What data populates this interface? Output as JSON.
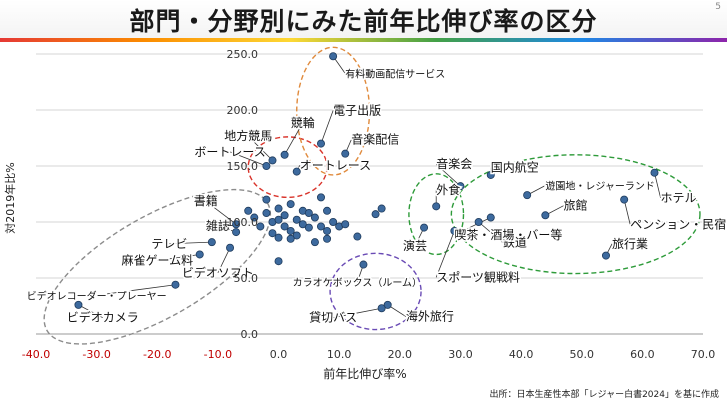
{
  "title": "部門・分野別にみた前年比伸び率の区分",
  "page_number": "5",
  "source_note": "出所：日本生産性本部「レジャー白書2024」を基に作成",
  "colors": {
    "point_fill": "#3d6a9e",
    "point_stroke": "#1f3b5c",
    "negative_tick": "#c00000",
    "red_group": "#d9342b",
    "orange_group": "#e08a3c",
    "green_group": "#2e9b3a",
    "purple_group": "#6a4bb5",
    "gray_group": "#8c8c8c"
  },
  "chart_data": {
    "type": "scatter",
    "xlabel": "前年比伸び率%",
    "ylabel": "対2019年比%",
    "xlim": [
      -40,
      70
    ],
    "ylim": [
      0,
      250
    ],
    "xticks": [
      "-40.0",
      "-30.0",
      "-20.0",
      "-10.0",
      "0.0",
      "10.0",
      "20.0",
      "30.0",
      "40.0",
      "50.0",
      "60.0",
      "70.0"
    ],
    "yticks": [
      "0.0",
      "50.0",
      "100.0",
      "150.0",
      "200.0",
      "250.0"
    ],
    "grid": "horizontal",
    "points": [
      {
        "x": 9.0,
        "y": 248.0,
        "label": "有料動画配信サービス",
        "lx": 11.0,
        "ly": 229.0,
        "anchor": "start"
      },
      {
        "x": 7.0,
        "y": 170.0,
        "label": "電子出版",
        "lx": 9.0,
        "ly": 196.0,
        "anchor": "start"
      },
      {
        "x": 11.0,
        "y": 161.0,
        "label": "音楽配信",
        "lx": 12.0,
        "ly": 170.0,
        "anchor": "start"
      },
      {
        "x": 1.0,
        "y": 160.0,
        "label": "競輪",
        "lx": 4.0,
        "ly": 185.0,
        "anchor": "middle"
      },
      {
        "x": -1.0,
        "y": 155.0,
        "label": "地方競馬",
        "lx": -5.0,
        "ly": 173.0,
        "anchor": "middle"
      },
      {
        "x": -2.0,
        "y": 150.0,
        "label": "ボートレース",
        "lx": -8.0,
        "ly": 159.0,
        "anchor": "middle"
      },
      {
        "x": 3.0,
        "y": 145.0,
        "label": "オートレース",
        "lx": 3.5,
        "ly": 147.0,
        "anchor": "start"
      },
      {
        "x": 30.0,
        "y": 132.0,
        "label": "音楽会",
        "lx": 26.0,
        "ly": 148.0,
        "anchor": "start"
      },
      {
        "x": 35.0,
        "y": 142.0,
        "label": "国内航空",
        "lx": 35.0,
        "ly": 145.0,
        "anchor": "start"
      },
      {
        "x": 62.0,
        "y": 144.0,
        "label": "ホテル",
        "lx": 63.0,
        "ly": 118.0,
        "anchor": "start"
      },
      {
        "x": 41.0,
        "y": 124.0,
        "label": "遊園地・レジャーランド",
        "lx": 44.0,
        "ly": 129.0,
        "anchor": "start"
      },
      {
        "x": 44.0,
        "y": 106.0,
        "label": "旅館",
        "lx": 47.0,
        "ly": 111.0,
        "anchor": "start"
      },
      {
        "x": 57.0,
        "y": 120.0,
        "label": "ペンション・民宿",
        "lx": 58.0,
        "ly": 94.0,
        "anchor": "start"
      },
      {
        "x": 33.0,
        "y": 100.0,
        "label": "鉄道",
        "lx": 37.0,
        "ly": 78.0,
        "anchor": "start"
      },
      {
        "x": 35.0,
        "y": 104.0,
        "label": "喫茶・酒場・バー等",
        "lx": 29.0,
        "ly": 85.0,
        "anchor": "start"
      },
      {
        "x": 54.0,
        "y": 70.0,
        "label": "旅行業",
        "lx": 55.0,
        "ly": 77.0,
        "anchor": "start"
      },
      {
        "x": 26.0,
        "y": 114.0,
        "label": "外食",
        "lx": 26.0,
        "ly": 125.0,
        "anchor": "start"
      },
      {
        "x": 24.0,
        "y": 95.0,
        "label": "演芸",
        "lx": 22.5,
        "ly": 75.0,
        "anchor": "middle"
      },
      {
        "x": 29.0,
        "y": 92.0,
        "label": "スポーツ観戦料",
        "lx": 26.0,
        "ly": 47.0,
        "anchor": "start"
      },
      {
        "x": 14.0,
        "y": 62.0,
        "label": "カラオケボックス（ルーム）",
        "lx": 13.0,
        "ly": 43.0,
        "anchor": "middle"
      },
      {
        "x": 18.0,
        "y": 26.0,
        "label": "海外旅行",
        "lx": 21.0,
        "ly": 12.0,
        "anchor": "start"
      },
      {
        "x": 17.0,
        "y": 23.0,
        "label": "貸切バス",
        "lx": 9.0,
        "ly": 11.0,
        "anchor": "middle"
      },
      {
        "x": -7.0,
        "y": 98.0,
        "label": "書籍",
        "lx": -12.0,
        "ly": 115.0,
        "anchor": "middle"
      },
      {
        "x": -7.0,
        "y": 91.0,
        "label": "雑誌",
        "lx": -10.0,
        "ly": 93.0,
        "anchor": "middle"
      },
      {
        "x": -11.0,
        "y": 82.0,
        "label": "テレビ",
        "lx": -18.0,
        "ly": 77.0,
        "anchor": "middle"
      },
      {
        "x": -13.0,
        "y": 71.0,
        "label": "麻雀ゲーム料",
        "lx": -20.0,
        "ly": 62.0,
        "anchor": "middle"
      },
      {
        "x": -8.0,
        "y": 77.0,
        "label": "ビデオソフト",
        "lx": -10.0,
        "ly": 51.0,
        "anchor": "middle"
      },
      {
        "x": -17.0,
        "y": 44.0,
        "label": "ビデオレコーダー・プレーヤー",
        "lx": -30.0,
        "ly": 31.0,
        "anchor": "middle"
      },
      {
        "x": -33.0,
        "y": 26.0,
        "label": "ビデオカメラ",
        "lx": -29.0,
        "ly": 11.0,
        "anchor": "middle"
      },
      {
        "x": -5.0,
        "y": 110.0
      },
      {
        "x": -4.0,
        "y": 104.0
      },
      {
        "x": -3.0,
        "y": 96.0
      },
      {
        "x": -2.0,
        "y": 108.0
      },
      {
        "x": -1.0,
        "y": 100.0
      },
      {
        "x": -1.0,
        "y": 90.0
      },
      {
        "x": 0.0,
        "y": 112.0
      },
      {
        "x": 0.0,
        "y": 102.0
      },
      {
        "x": 0.0,
        "y": 86.0
      },
      {
        "x": 0.0,
        "y": 65.0
      },
      {
        "x": 1.0,
        "y": 96.0
      },
      {
        "x": 1.0,
        "y": 106.0
      },
      {
        "x": 2.0,
        "y": 92.0
      },
      {
        "x": 2.0,
        "y": 116.0
      },
      {
        "x": 3.0,
        "y": 102.0
      },
      {
        "x": 3.0,
        "y": 88.0
      },
      {
        "x": 4.0,
        "y": 110.0
      },
      {
        "x": 4.0,
        "y": 98.0
      },
      {
        "x": 5.0,
        "y": 95.0
      },
      {
        "x": 5.0,
        "y": 108.0
      },
      {
        "x": 6.0,
        "y": 104.0
      },
      {
        "x": 6.0,
        "y": 82.0
      },
      {
        "x": 7.0,
        "y": 122.0
      },
      {
        "x": 7.0,
        "y": 96.0
      },
      {
        "x": 8.0,
        "y": 92.0
      },
      {
        "x": 8.0,
        "y": 110.0
      },
      {
        "x": 9.0,
        "y": 100.0
      },
      {
        "x": 10.0,
        "y": 96.0
      },
      {
        "x": 11.0,
        "y": 98.0
      },
      {
        "x": 13.0,
        "y": 87.0
      },
      {
        "x": 16.0,
        "y": 107.0
      },
      {
        "x": 17.0,
        "y": 112.0
      },
      {
        "x": 8.0,
        "y": 85.0
      },
      {
        "x": -2.0,
        "y": 120.0
      },
      {
        "x": 2.0,
        "y": 85.0
      }
    ],
    "group_ellipses": [
      {
        "cx": 1.5,
        "cy": 149.0,
        "rx": 6.5,
        "ry": 27.0,
        "color": "red_group"
      },
      {
        "cx": 9.0,
        "cy": 199.0,
        "rx": 6.0,
        "ry": 57.0,
        "color": "orange_group"
      },
      {
        "cx": 26.0,
        "cy": 107.0,
        "rx": 4.5,
        "ry": 36.0,
        "color": "green_group"
      },
      {
        "cx": 49.0,
        "cy": 107.0,
        "rx": 20.5,
        "ry": 53.0,
        "color": "green_group"
      },
      {
        "cx": 16.0,
        "cy": 38.0,
        "rx": 7.5,
        "ry": 34.0,
        "color": "purple_group"
      },
      {
        "cx": -20.0,
        "cy": 60.0,
        "rx": 21.0,
        "ry": 45.0,
        "color": "gray_group",
        "rotate": -30
      }
    ]
  }
}
